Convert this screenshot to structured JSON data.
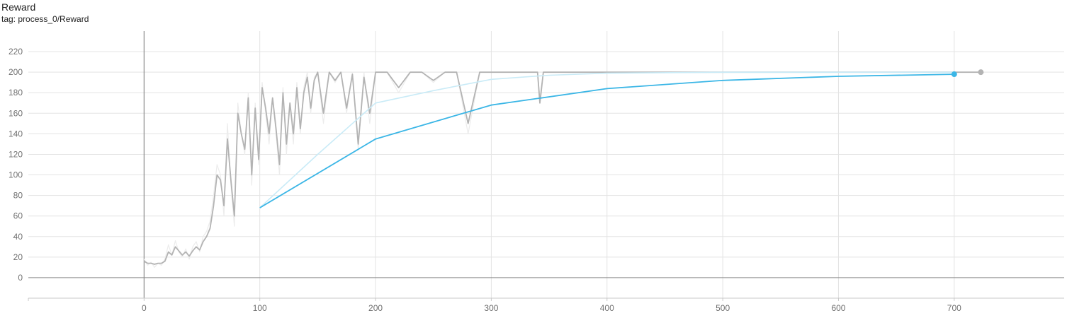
{
  "card": {
    "title": "Reward",
    "tag": "tag: process_0/Reward"
  },
  "chart_data": {
    "type": "line",
    "x_ticks": [
      0,
      100,
      200,
      300,
      400,
      500,
      600,
      700
    ],
    "y_ticks": [
      0,
      20,
      40,
      60,
      80,
      100,
      120,
      140,
      160,
      180,
      200,
      220
    ],
    "xlim": [
      -100,
      795
    ],
    "ylim": [
      -20,
      240
    ],
    "grid": true,
    "colors": {
      "grey": "#b3b3b3",
      "grey_light": "#ececec",
      "blue": "#3bb6e6",
      "blue_light": "#c9ebf7"
    },
    "series": [
      {
        "role": "grey-raw",
        "x": [
          0,
          3,
          6,
          9,
          12,
          15,
          18,
          21,
          24,
          27,
          30,
          33,
          36,
          39,
          42,
          45,
          48,
          51,
          54,
          57,
          60,
          63,
          66,
          69,
          72,
          75,
          78,
          81,
          84,
          87,
          90,
          93,
          96,
          99,
          102,
          105,
          108,
          111,
          114,
          117,
          120,
          123,
          126,
          129,
          132,
          135,
          138,
          141,
          144,
          147,
          150,
          155,
          160,
          165,
          170,
          175,
          180,
          185,
          190,
          195,
          200,
          210,
          220,
          230,
          240,
          250,
          260,
          270,
          280,
          290,
          300,
          320,
          340,
          342,
          345,
          360,
          372,
          380,
          400,
          450,
          500,
          550,
          600,
          650,
          700,
          723
        ],
        "y": [
          18,
          12,
          15,
          10,
          14,
          12,
          18,
          32,
          22,
          36,
          25,
          20,
          28,
          18,
          30,
          35,
          25,
          40,
          45,
          55,
          80,
          110,
          100,
          60,
          150,
          90,
          50,
          170,
          140,
          120,
          180,
          90,
          170,
          110,
          190,
          160,
          130,
          175,
          140,
          100,
          185,
          120,
          170,
          130,
          190,
          140,
          185,
          200,
          160,
          195,
          200,
          150,
          200,
          190,
          200,
          160,
          200,
          125,
          200,
          150,
          200,
          200,
          180,
          200,
          200,
          190,
          200,
          200,
          140,
          200,
          200,
          200,
          200,
          175,
          200,
          200,
          200,
          200,
          200,
          200,
          200,
          200,
          200,
          200,
          200,
          200
        ]
      },
      {
        "role": "grey-smoothed",
        "x": [
          0,
          3,
          6,
          9,
          12,
          15,
          18,
          21,
          24,
          27,
          30,
          33,
          36,
          39,
          42,
          45,
          48,
          51,
          54,
          57,
          60,
          63,
          66,
          69,
          72,
          75,
          78,
          81,
          84,
          87,
          90,
          93,
          96,
          99,
          102,
          105,
          108,
          111,
          114,
          117,
          120,
          123,
          126,
          129,
          132,
          135,
          138,
          141,
          144,
          147,
          150,
          155,
          160,
          165,
          170,
          175,
          180,
          185,
          190,
          195,
          200,
          210,
          220,
          230,
          240,
          250,
          260,
          270,
          280,
          290,
          300,
          320,
          340,
          342,
          345,
          360,
          372,
          380,
          400,
          450,
          500,
          550,
          600,
          650,
          700,
          723
        ],
        "y": [
          16,
          14,
          14,
          13,
          14,
          14,
          16,
          25,
          22,
          30,
          26,
          22,
          25,
          21,
          26,
          30,
          27,
          35,
          40,
          48,
          70,
          100,
          95,
          70,
          135,
          95,
          60,
          160,
          140,
          125,
          175,
          100,
          165,
          115,
          185,
          165,
          140,
          175,
          145,
          110,
          180,
          130,
          170,
          140,
          185,
          145,
          180,
          195,
          165,
          192,
          200,
          160,
          200,
          192,
          200,
          165,
          198,
          130,
          195,
          160,
          200,
          200,
          185,
          200,
          200,
          192,
          200,
          200,
          150,
          200,
          200,
          200,
          200,
          170,
          200,
          200,
          200,
          200,
          200,
          200,
          200,
          200,
          200,
          200,
          200,
          200
        ]
      },
      {
        "role": "blue-raw",
        "x": [
          100,
          150,
          180,
          200,
          250,
          300,
          350,
          400,
          500,
          600,
          700
        ],
        "y": [
          68,
          120,
          150,
          170,
          182,
          193,
          197,
          199,
          200,
          200,
          200
        ]
      },
      {
        "role": "blue-smoothed",
        "x": [
          100,
          200,
          300,
          400,
          500,
          600,
          700
        ],
        "y": [
          68,
          135,
          168,
          184,
          192,
          196,
          198
        ]
      }
    ],
    "end_points": [
      {
        "x": 723,
        "y": 200,
        "color": "#b3b3b3"
      },
      {
        "x": 700,
        "y": 198,
        "color": "#3bb6e6"
      }
    ]
  }
}
